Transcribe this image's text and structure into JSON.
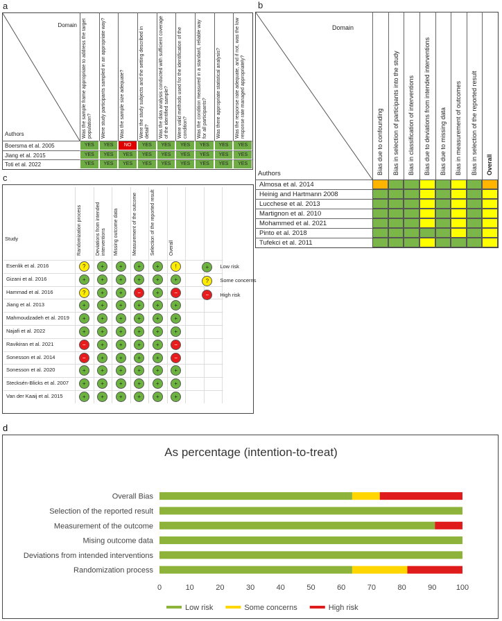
{
  "panel_a": {
    "label": "a",
    "domain_label": "Domain",
    "authors_label": "Authors",
    "questions": [
      "Was the sample frame appropriate to address the target population?",
      "Were study participants sampled in an appropriate way?",
      "Was the sample size adequate?",
      "Were the study subjects and the setting described in detail?",
      "Was the data analysis conducted with sufficient coverage of the identified sample?",
      "Were valid methods used for the identification of the condition?",
      "Was the condition measured in a standard, reliable way for all participants?",
      "Was there appropriate statistical analysis?",
      "Was the response rate adequate, and if not, was the low response rate managed appropriately?"
    ],
    "rows": [
      {
        "author": "Boersma et al. 2005",
        "answers": [
          "YES",
          "YES",
          "NO",
          "YES",
          "YES",
          "YES",
          "YES",
          "YES",
          "YES"
        ]
      },
      {
        "author": "Jiang et al. 2015",
        "answers": [
          "YES",
          "YES",
          "YES",
          "YES",
          "YES",
          "YES",
          "YES",
          "YES",
          "YES"
        ]
      },
      {
        "author": "Toti et al. 2022",
        "answers": [
          "YES",
          "YES",
          "YES",
          "YES",
          "YES",
          "YES",
          "YES",
          "YES",
          "YES"
        ]
      }
    ],
    "answer_colors": {
      "YES": "#6fac46",
      "NO": "#e00000"
    }
  },
  "panel_b": {
    "label": "b",
    "domain_label": "Domain",
    "authors_label": "Authors",
    "domains": [
      "Bias due to confounding",
      "Bias in selection of participants into the study",
      "Bias in classification of interventions",
      "Bias due to deviations from intended interventions",
      "Bias due to missing data",
      "Bias in measurement of outcomes",
      "Bias in selection of the reported result",
      "Overall"
    ],
    "rows": [
      {
        "author": "Almosa et al. 2014",
        "colors": [
          "#ffb400",
          "#7ab648",
          "#7ab648",
          "#ffff00",
          "#7ab648",
          "#ffff00",
          "#7ab648",
          "#ffb400"
        ]
      },
      {
        "author": "Heinig and Hartmann 2008",
        "colors": [
          "#7ab648",
          "#7ab648",
          "#7ab648",
          "#ffff00",
          "#7ab648",
          "#ffff00",
          "#7ab648",
          "#ffff00"
        ]
      },
      {
        "author": "Lucchese et al. 2013",
        "colors": [
          "#7ab648",
          "#7ab648",
          "#7ab648",
          "#ffff00",
          "#7ab648",
          "#ffff00",
          "#7ab648",
          "#ffff00"
        ]
      },
      {
        "author": "Martignon et al. 2010",
        "colors": [
          "#7ab648",
          "#7ab648",
          "#7ab648",
          "#ffff00",
          "#7ab648",
          "#ffff00",
          "#7ab648",
          "#ffff00"
        ]
      },
      {
        "author": "Mohammed et al. 2021",
        "colors": [
          "#7ab648",
          "#7ab648",
          "#7ab648",
          "#ffff00",
          "#7ab648",
          "#ffff00",
          "#7ab648",
          "#ffff00"
        ]
      },
      {
        "author": "Pinto et al. 2018",
        "colors": [
          "#7ab648",
          "#7ab648",
          "#7ab648",
          "#7ab648",
          "#7ab648",
          "#ffff00",
          "#7ab648",
          "#ffff00"
        ]
      },
      {
        "author": "Tufekci et al. 2011",
        "colors": [
          "#7ab648",
          "#7ab648",
          "#7ab648",
          "#ffff00",
          "#7ab648",
          "#7ab648",
          "#7ab648",
          "#ffff00"
        ]
      }
    ]
  },
  "panel_c": {
    "label": "c",
    "study_label": "Study",
    "domains": [
      "Randomization process",
      "Deviations from intended interventions",
      "Missing outcome data",
      "Measurement of the outcome",
      "Selection of the reported result",
      "Overall"
    ],
    "rows": [
      {
        "study": "Esenlik et al. 2016",
        "judgments": [
          "?",
          "+",
          "+",
          "+",
          "+",
          "!"
        ]
      },
      {
        "study": "Gizani et al. 2016",
        "judgments": [
          "+",
          "+",
          "+",
          "+",
          "+",
          "+"
        ]
      },
      {
        "study": "Hammad et al. 2016",
        "judgments": [
          "?",
          "+",
          "+",
          "−",
          "+",
          "−"
        ]
      },
      {
        "study": "Jiang et al. 2013",
        "judgments": [
          "+",
          "+",
          "+",
          "+",
          "+",
          "+"
        ]
      },
      {
        "study": "Mahmoudzadeh et al. 2019",
        "judgments": [
          "+",
          "+",
          "+",
          "+",
          "+",
          "+"
        ]
      },
      {
        "study": "Najafi et al. 2022",
        "judgments": [
          "+",
          "+",
          "+",
          "+",
          "+",
          "+"
        ]
      },
      {
        "study": "Ravikiran et al. 2021",
        "judgments": [
          "−",
          "+",
          "+",
          "+",
          "+",
          "−"
        ]
      },
      {
        "study": "Sonesson et al. 2014",
        "judgments": [
          "−",
          "+",
          "+",
          "+",
          "+",
          "−"
        ]
      },
      {
        "study": "Sonesson et al. 2020",
        "judgments": [
          "+",
          "+",
          "+",
          "+",
          "+",
          "+"
        ]
      },
      {
        "study": "Stecksén-Blicks et al. 2007",
        "judgments": [
          "+",
          "+",
          "+",
          "+",
          "+",
          "+"
        ]
      },
      {
        "study": "Van der Kaaij et al. 2015",
        "judgments": [
          "+",
          "+",
          "+",
          "+",
          "+",
          "+"
        ]
      }
    ],
    "symbol_colors": {
      "+": "#6cb33f",
      "?": "#ffec00",
      "−": "#e81c1c",
      "!": "#ffec00"
    },
    "legend": [
      {
        "symbol": "+",
        "label": "Low risk"
      },
      {
        "symbol": "?",
        "label": "Some concerns"
      },
      {
        "symbol": "−",
        "label": "High risk"
      }
    ]
  },
  "chart_data": {
    "type": "bar",
    "orientation": "horizontal",
    "stacked": true,
    "label": "d",
    "title": "As percentage (intention-to-treat)",
    "categories": [
      "Overall Bias",
      "Selection of the reported result",
      "Measurement of the outcome",
      "Mising outcome data",
      "Deviations from intended interventions",
      "Randomization process"
    ],
    "series": [
      {
        "name": "Low risk",
        "color": "#8db33a",
        "values": [
          63.6,
          100,
          90.9,
          100,
          100,
          63.6
        ]
      },
      {
        "name": "Some concerns",
        "color": "#ffd600",
        "values": [
          9.1,
          0,
          0,
          0,
          0,
          18.2
        ]
      },
      {
        "name": "High risk",
        "color": "#e01b1b",
        "values": [
          27.3,
          0,
          9.1,
          0,
          0,
          18.2
        ]
      }
    ],
    "xlim": [
      0,
      100
    ],
    "xticks": [
      0,
      10,
      20,
      30,
      40,
      50,
      60,
      70,
      80,
      90,
      100
    ],
    "grid": false,
    "legend": "bottom"
  }
}
